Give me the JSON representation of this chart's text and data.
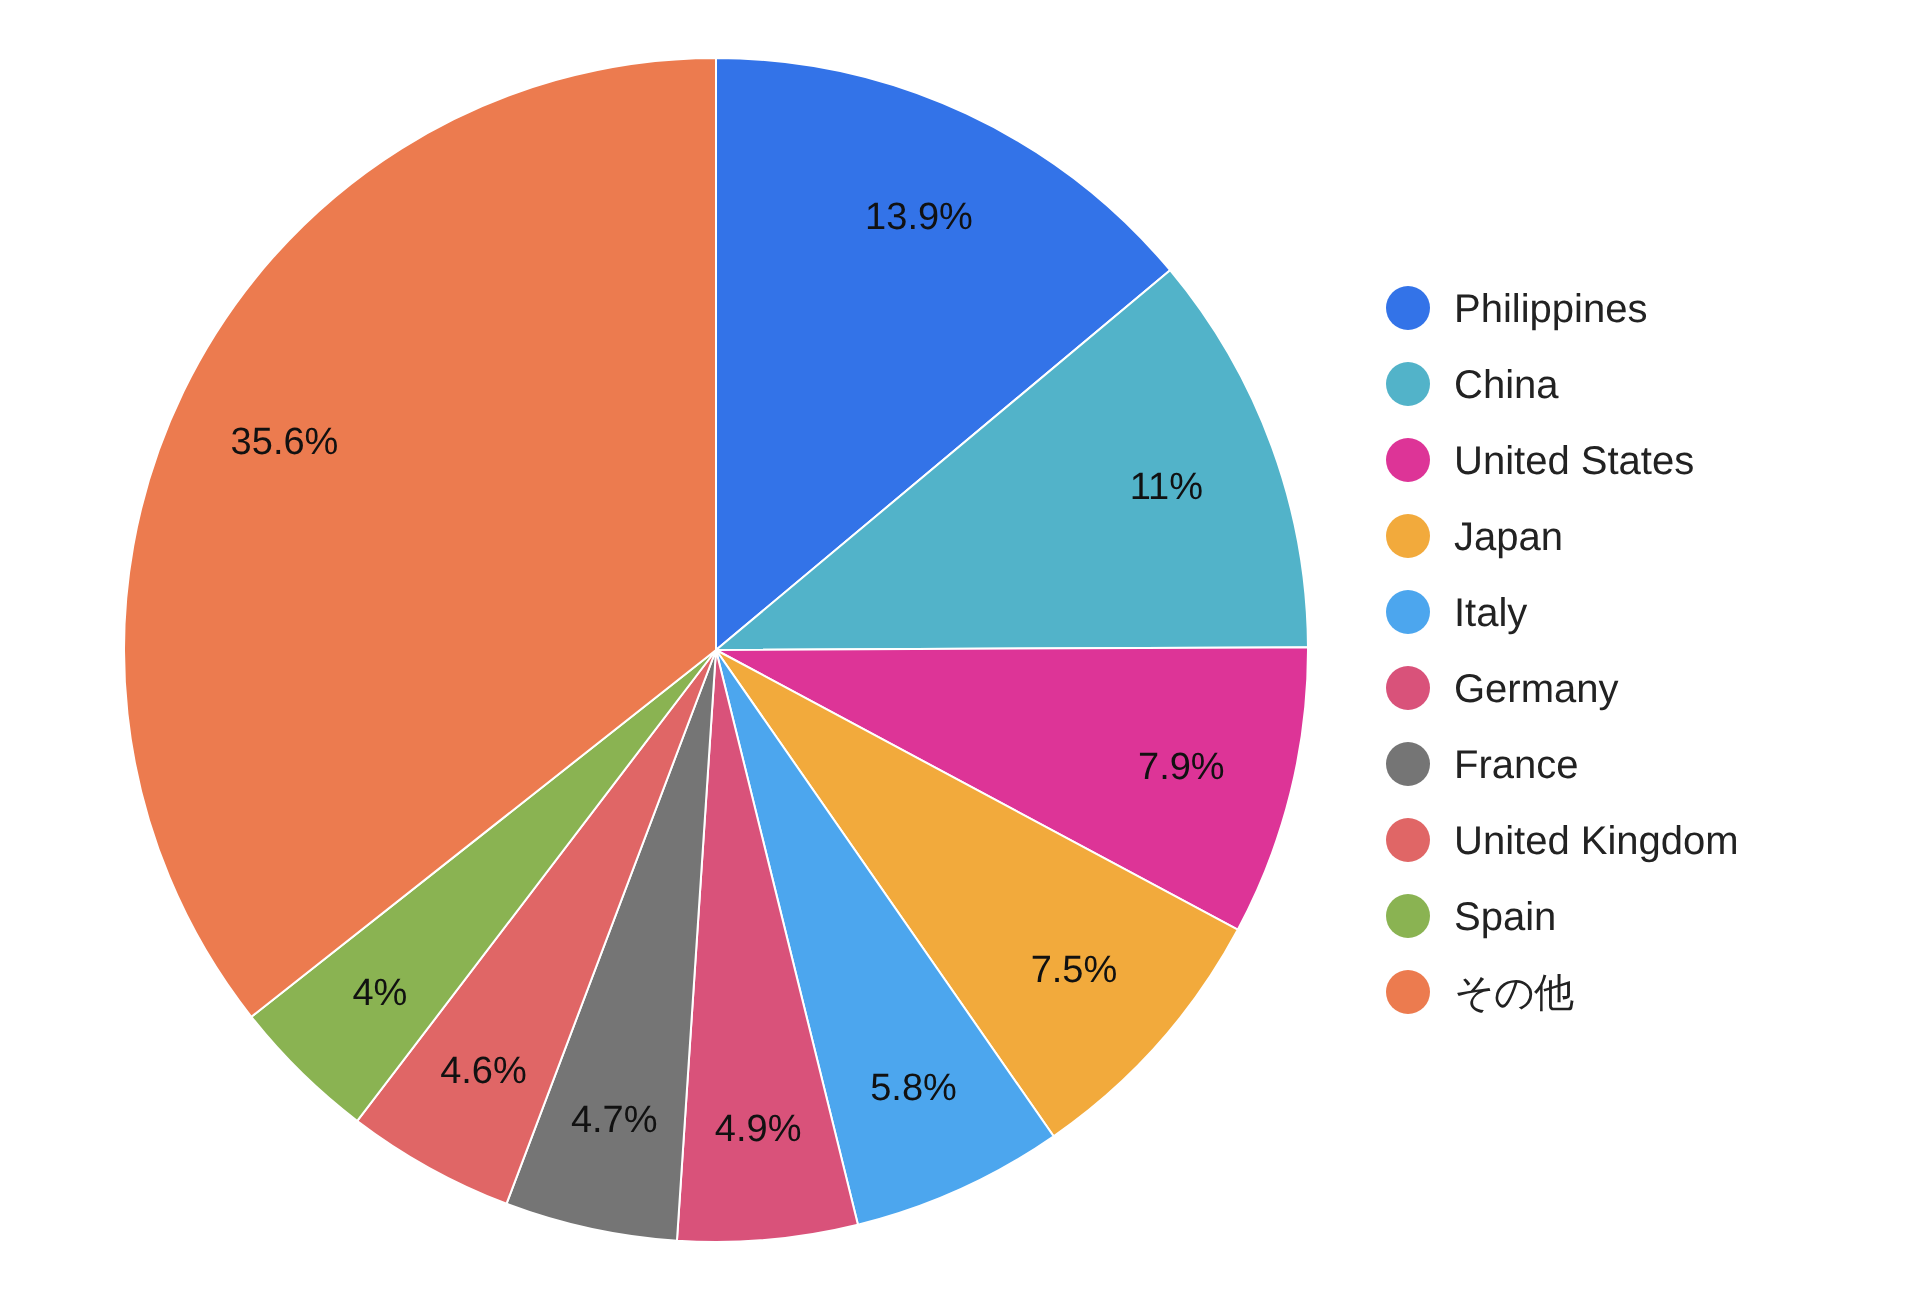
{
  "chart_data": {
    "type": "pie",
    "categories": [
      "Philippines",
      "China",
      "United States",
      "Japan",
      "Italy",
      "Germany",
      "France",
      "United Kingdom",
      "Spain",
      "その他"
    ],
    "values": [
      13.9,
      11,
      7.9,
      7.5,
      5.8,
      4.9,
      4.7,
      4.6,
      4,
      35.6
    ],
    "value_labels": [
      "13.9%",
      "11%",
      "7.9%",
      "7.5%",
      "5.8%",
      "4.9%",
      "4.7%",
      "4.6%",
      "4%",
      "35.6%"
    ],
    "colors": [
      "#3373e8",
      "#52b3c9",
      "#dd3497",
      "#f2aa3c",
      "#4ca6ee",
      "#d9527a",
      "#757575",
      "#e06666",
      "#8ab352",
      "#ec7b4f"
    ],
    "legend": "right"
  }
}
